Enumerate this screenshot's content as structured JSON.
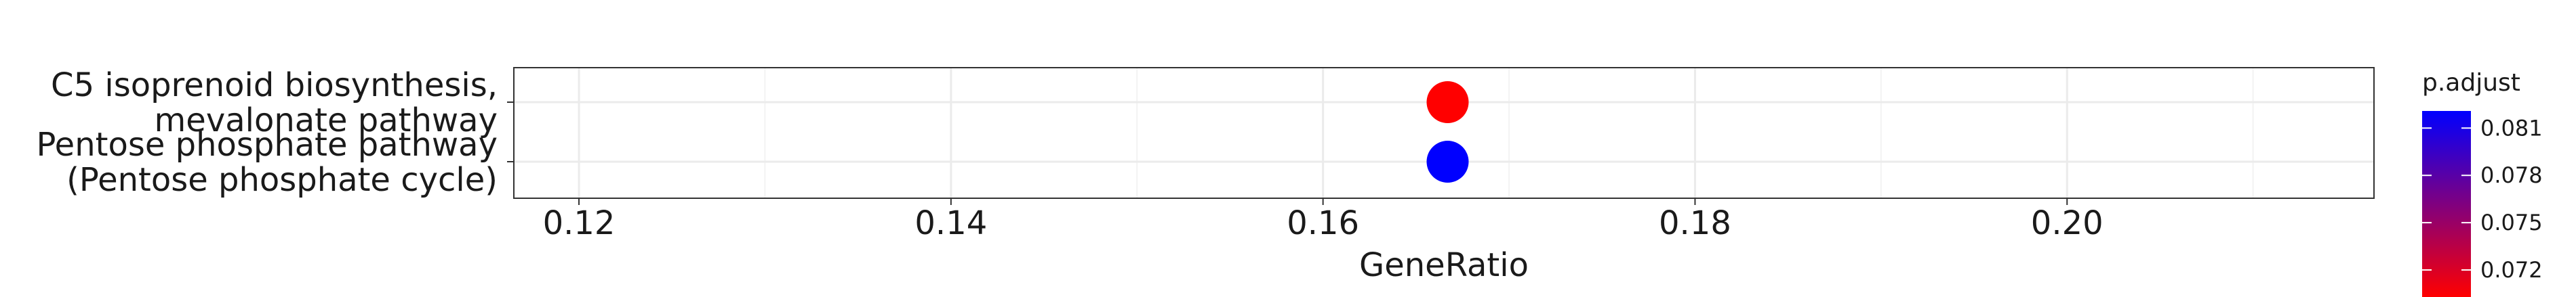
{
  "chart_data": {
    "type": "scatter",
    "xlabel": "GeneRatio",
    "xlim": [
      0.1165,
      0.2165
    ],
    "xticks": [
      0.12,
      0.14,
      0.16,
      0.18,
      0.2
    ],
    "xtick_labels": [
      "0.12",
      "0.14",
      "0.16",
      "0.18",
      "0.20"
    ],
    "categories": [
      {
        "lines": [
          "C5 isoprenoid biosynthesis,",
          "mevalonate pathway"
        ]
      },
      {
        "lines": [
          "Pentose phosphate pathway",
          "(Pentose phosphate cycle)"
        ]
      }
    ],
    "points": [
      {
        "category_index": 0,
        "gene_ratio": 0.1667,
        "p_adjust": 0.0705,
        "color": "#ff0000"
      },
      {
        "category_index": 1,
        "gene_ratio": 0.1667,
        "p_adjust": 0.082,
        "color": "#0000ff"
      }
    ],
    "colorbar": {
      "title": "p.adjust",
      "ticks": [
        0.081,
        0.078,
        0.075,
        0.072
      ],
      "tick_labels": [
        "0.081",
        "0.078",
        "0.075",
        "0.072"
      ],
      "range": [
        0.0705,
        0.082
      ],
      "low_color": "#ff0000",
      "high_color": "#0000ff"
    },
    "grid": true,
    "legend_position": "right"
  }
}
